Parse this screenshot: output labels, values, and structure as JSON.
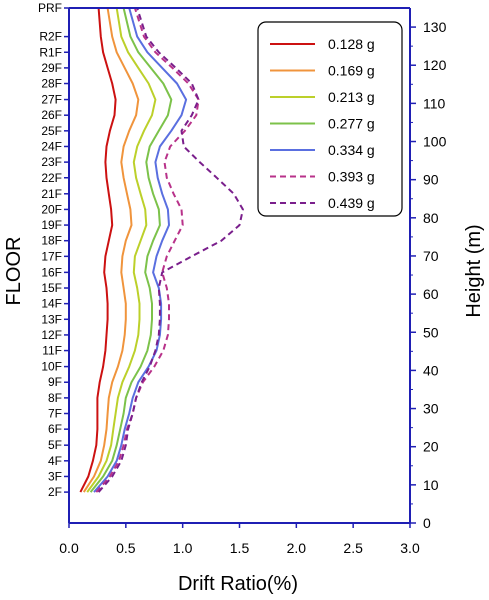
{
  "chart_data": {
    "type": "line",
    "xlabel": "Drift Ratio(%)",
    "ylabel_left": "FLOOR",
    "ylabel_right": "Height (m)",
    "xlim": [
      0,
      3.0
    ],
    "x_ticks": [
      "0.0",
      "0.5",
      "1.0",
      "1.5",
      "2.0",
      "2.5",
      "3.0"
    ],
    "height_lim": [
      0,
      135
    ],
    "height_ticks": [
      "0",
      "10",
      "20",
      "30",
      "40",
      "50",
      "60",
      "70",
      "80",
      "90",
      "100",
      "110",
      "120",
      "130"
    ],
    "floors": [
      "2F",
      "3F",
      "4F",
      "5F",
      "6F",
      "7F",
      "8F",
      "9F",
      "10F",
      "11F",
      "12F",
      "13F",
      "14F",
      "15F",
      "16F",
      "17F",
      "18F",
      "19F",
      "20F",
      "21F",
      "22F",
      "23F",
      "24F",
      "25F",
      "26F",
      "27F",
      "28F",
      "29F",
      "R1F",
      "R2F",
      "PRF"
    ],
    "floor_heights": [
      8.1,
      12.2,
      16.3,
      20.4,
      24.6,
      28.7,
      32.8,
      36.9,
      41.0,
      45.2,
      49.3,
      53.4,
      57.5,
      61.6,
      65.7,
      69.9,
      74.0,
      78.1,
      82.2,
      86.3,
      90.5,
      94.6,
      98.7,
      102.8,
      106.9,
      111.0,
      115.2,
      119.3,
      123.4,
      127.5,
      135.0
    ],
    "legend_position": "top-right",
    "series": [
      {
        "name": "0.128 g",
        "color": "#cc1111",
        "dash": false,
        "values": [
          0.1,
          0.17,
          0.21,
          0.24,
          0.25,
          0.25,
          0.25,
          0.27,
          0.3,
          0.32,
          0.33,
          0.34,
          0.34,
          0.33,
          0.31,
          0.32,
          0.35,
          0.38,
          0.37,
          0.35,
          0.33,
          0.32,
          0.33,
          0.36,
          0.4,
          0.41,
          0.38,
          0.34,
          0.3,
          0.28,
          0.26
        ]
      },
      {
        "name": "0.169 g",
        "color": "#f0943c",
        "dash": false,
        "values": [
          0.13,
          0.22,
          0.28,
          0.31,
          0.33,
          0.34,
          0.35,
          0.38,
          0.43,
          0.47,
          0.49,
          0.5,
          0.5,
          0.48,
          0.46,
          0.47,
          0.5,
          0.55,
          0.54,
          0.51,
          0.48,
          0.46,
          0.48,
          0.53,
          0.59,
          0.61,
          0.56,
          0.49,
          0.42,
          0.38,
          0.34
        ]
      },
      {
        "name": "0.213 g",
        "color": "#bcd02a",
        "dash": false,
        "values": [
          0.16,
          0.26,
          0.33,
          0.37,
          0.39,
          0.41,
          0.43,
          0.47,
          0.53,
          0.58,
          0.61,
          0.62,
          0.62,
          0.6,
          0.57,
          0.58,
          0.63,
          0.68,
          0.67,
          0.63,
          0.59,
          0.57,
          0.6,
          0.66,
          0.73,
          0.76,
          0.7,
          0.61,
          0.52,
          0.46,
          0.42
        ]
      },
      {
        "name": "0.277 g",
        "color": "#7cc24a",
        "dash": false,
        "values": [
          0.19,
          0.3,
          0.38,
          0.42,
          0.45,
          0.48,
          0.5,
          0.55,
          0.63,
          0.69,
          0.72,
          0.73,
          0.73,
          0.71,
          0.67,
          0.69,
          0.74,
          0.8,
          0.79,
          0.74,
          0.7,
          0.68,
          0.71,
          0.79,
          0.87,
          0.9,
          0.83,
          0.72,
          0.61,
          0.54,
          0.48
        ]
      },
      {
        "name": "0.334 g",
        "color": "#5a6fe0",
        "dash": false,
        "values": [
          0.22,
          0.34,
          0.42,
          0.46,
          0.49,
          0.53,
          0.56,
          0.61,
          0.7,
          0.77,
          0.8,
          0.81,
          0.81,
          0.79,
          0.74,
          0.77,
          0.82,
          0.88,
          0.87,
          0.82,
          0.78,
          0.76,
          0.8,
          0.9,
          0.99,
          1.03,
          0.95,
          0.82,
          0.69,
          0.6,
          0.53
        ]
      },
      {
        "name": "0.393 g",
        "color": "#b8328a",
        "dash": true,
        "values": [
          0.24,
          0.36,
          0.44,
          0.48,
          0.51,
          0.56,
          0.59,
          0.65,
          0.75,
          0.83,
          0.87,
          0.88,
          0.88,
          0.86,
          0.82,
          0.86,
          0.93,
          1.0,
          0.99,
          0.92,
          0.86,
          0.84,
          0.89,
          1.02,
          1.12,
          1.14,
          1.05,
          0.91,
          0.76,
          0.66,
          0.58
        ]
      },
      {
        "name": "0.439 g",
        "color": "#7a1f8c",
        "dash": true,
        "values": [
          0.26,
          0.38,
          0.46,
          0.5,
          0.52,
          0.56,
          0.59,
          0.64,
          0.71,
          0.76,
          0.79,
          0.8,
          0.8,
          0.79,
          0.82,
          1.08,
          1.34,
          1.5,
          1.53,
          1.45,
          1.3,
          1.15,
          1.01,
          0.99,
          1.08,
          1.14,
          1.08,
          0.94,
          0.79,
          0.68,
          0.6
        ]
      }
    ]
  }
}
